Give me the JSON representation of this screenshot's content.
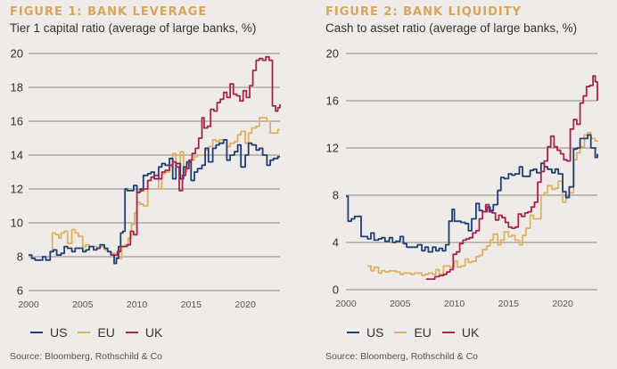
{
  "chart_data": [
    {
      "type": "line",
      "title": "FIGURE 1: BANK LEVERAGE",
      "subtitle": "Tier 1 capital ratio (average of large banks, %)",
      "xlabel": "",
      "ylabel": "",
      "xlim": [
        2000,
        2023.2
      ],
      "ylim": [
        6,
        20
      ],
      "yticks": [
        6,
        8,
        10,
        12,
        14,
        16,
        18,
        20
      ],
      "xticks": [
        2000,
        2005,
        2010,
        2015,
        2020
      ],
      "grid": true,
      "legend": "bottom-left",
      "source": "Source: Bloomberg, Rothschild & Co",
      "series": [
        {
          "name": "US",
          "color": "#1f3f73",
          "x": [
            2000,
            2000.3,
            2000.6,
            2001,
            2001.3,
            2001.6,
            2001.8,
            2002,
            2002.3,
            2002.6,
            2003,
            2003.3,
            2003.6,
            2004,
            2004.3,
            2004.6,
            2005,
            2005.3,
            2005.6,
            2006,
            2006.3,
            2006.6,
            2007,
            2007.3,
            2007.6,
            2007.9,
            2008.1,
            2008.3,
            2008.5,
            2008.7,
            2008.9,
            2009.1,
            2009.4,
            2009.7,
            2010,
            2010.3,
            2010.6,
            2011,
            2011.3,
            2011.6,
            2012,
            2012.3,
            2012.6,
            2013,
            2013.3,
            2013.6,
            2014,
            2014.3,
            2014.6,
            2015,
            2015.3,
            2015.6,
            2016,
            2016.3,
            2016.6,
            2017,
            2017.3,
            2017.6,
            2018,
            2018.3,
            2018.6,
            2019,
            2019.3,
            2019.6,
            2020,
            2020.3,
            2020.6,
            2021,
            2021.3,
            2021.6,
            2022,
            2022.3,
            2022.6,
            2023,
            2023.2
          ],
          "values": [
            8.1,
            7.9,
            7.8,
            7.8,
            8.0,
            7.8,
            7.8,
            8.3,
            8.4,
            8.1,
            8.2,
            8.6,
            8.5,
            8.3,
            8.5,
            8.5,
            8.3,
            8.4,
            8.6,
            8.4,
            8.5,
            8.7,
            8.5,
            8.3,
            8.1,
            7.6,
            7.9,
            8.6,
            9.4,
            9.5,
            12.0,
            11.9,
            11.9,
            12.2,
            11.8,
            12.0,
            12.8,
            12.9,
            13.0,
            12.6,
            13.3,
            13.5,
            13.4,
            13.8,
            12.6,
            13.5,
            12.6,
            13.3,
            13.6,
            12.5,
            13.0,
            13.2,
            13.4,
            14.4,
            13.6,
            14.4,
            14.6,
            14.7,
            14.9,
            13.7,
            14.0,
            14.2,
            14.6,
            13.3,
            14.0,
            14.7,
            14.6,
            14.3,
            14.4,
            14.0,
            13.4,
            13.7,
            13.8,
            13.9,
            13.9
          ]
        },
        {
          "name": "EU",
          "color": "#e0b060",
          "x": [
            2002,
            2002.2,
            2002.5,
            2002.8,
            2003,
            2003.3,
            2003.6,
            2004,
            2004.3,
            2004.6,
            2005,
            2005.3,
            2005.6,
            2006,
            2006.3,
            2006.6,
            2007,
            2007.3,
            2007.6,
            2008,
            2008.3,
            2008.6,
            2008.9,
            2009.2,
            2009.5,
            2009.8,
            2010,
            2010.3,
            2010.6,
            2011,
            2011.3,
            2011.6,
            2012,
            2012.3,
            2012.6,
            2013,
            2013.3,
            2013.6,
            2014,
            2014.3,
            2014.6,
            2015,
            2015.3,
            2015.6,
            2016,
            2016.3,
            2016.6,
            2017,
            2017.3,
            2017.6,
            2018,
            2018.3,
            2018.6,
            2019,
            2019.3,
            2019.6,
            2020,
            2020.3,
            2020.6,
            2021,
            2021.3,
            2021.6,
            2022,
            2022.3,
            2022.6,
            2023,
            2023.2
          ],
          "values": [
            8.3,
            9.4,
            9.3,
            9.1,
            9.4,
            9.5,
            8.8,
            9.6,
            9.4,
            9.2,
            8.6,
            8.7,
            8.6,
            8.6,
            8.5,
            8.6,
            8.4,
            8.3,
            8.2,
            8.1,
            7.9,
            8.6,
            8.7,
            9.1,
            9.9,
            10.6,
            11.2,
            11.1,
            11.0,
            12.5,
            12.7,
            12.8,
            12.0,
            12.9,
            13.0,
            13.3,
            14.1,
            13.5,
            14.2,
            13.0,
            13.5,
            13.7,
            13.9,
            14.0,
            14.0,
            14.3,
            14.5,
            14.9,
            14.8,
            14.9,
            14.9,
            14.5,
            14.7,
            14.8,
            15.2,
            15.4,
            14.7,
            15.3,
            15.6,
            15.7,
            16.2,
            16.2,
            16.0,
            15.3,
            15.3,
            15.5,
            15.5
          ]
        },
        {
          "name": "UK",
          "color": "#a8234f",
          "x": [
            2007.6,
            2007.9,
            2008.2,
            2008.5,
            2008.8,
            2009.1,
            2009.4,
            2009.7,
            2010,
            2010.3,
            2010.6,
            2011,
            2011.3,
            2011.6,
            2012,
            2012.3,
            2012.6,
            2013,
            2013.3,
            2013.6,
            2013.9,
            2014.2,
            2014.5,
            2014.8,
            2015.1,
            2015.4,
            2015.7,
            2016,
            2016.2,
            2016.5,
            2016.8,
            2017.1,
            2017.4,
            2017.7,
            2018,
            2018.3,
            2018.6,
            2018.9,
            2019.2,
            2019.5,
            2019.8,
            2020.1,
            2020.4,
            2020.7,
            2021,
            2021.3,
            2021.6,
            2021.9,
            2022.2,
            2022.5,
            2022.8,
            2023,
            2023.2
          ],
          "values": [
            8.1,
            8.1,
            8.3,
            8.6,
            8.6,
            8.7,
            9.5,
            9.3,
            11.8,
            11.9,
            12.0,
            12.5,
            12.7,
            12.8,
            12.6,
            13.0,
            13.1,
            13.4,
            13.6,
            13.3,
            11.9,
            12.8,
            13.2,
            13.7,
            14.1,
            14.4,
            15.0,
            16.2,
            15.6,
            15.7,
            16.7,
            16.6,
            17.1,
            17.3,
            17.7,
            17.4,
            18.2,
            17.6,
            17.5,
            17.2,
            17.8,
            17.4,
            18.1,
            19.0,
            19.6,
            19.7,
            19.6,
            19.8,
            19.6,
            16.9,
            16.6,
            16.8,
            17.0
          ]
        }
      ]
    },
    {
      "type": "line",
      "title": "FIGURE 2: BANK LIQUIDITY",
      "subtitle": "Cash to asset ratio (average of large banks, %)",
      "xlabel": "",
      "ylabel": "",
      "xlim": [
        2000,
        2023.2
      ],
      "ylim": [
        0,
        20
      ],
      "yticks": [
        0,
        4,
        8,
        12,
        16,
        20
      ],
      "xticks": [
        2000,
        2005,
        2010,
        2015,
        2020
      ],
      "grid": true,
      "legend": "bottom-left",
      "source": "Source: Bloomberg, Rothschild & Co",
      "series": [
        {
          "name": "US",
          "color": "#1f3f73",
          "x": [
            2000,
            2000.2,
            2000.5,
            2000.8,
            2001.1,
            2001.4,
            2001.7,
            2002,
            2002.3,
            2002.6,
            2003,
            2003.3,
            2003.6,
            2004,
            2004.3,
            2004.6,
            2005,
            2005.3,
            2005.6,
            2006,
            2006.3,
            2006.6,
            2007,
            2007.3,
            2007.6,
            2008,
            2008.3,
            2008.6,
            2008.9,
            2009.2,
            2009.5,
            2009.8,
            2010,
            2010.3,
            2010.6,
            2011,
            2011.3,
            2011.6,
            2012,
            2012.3,
            2012.6,
            2013,
            2013.3,
            2013.6,
            2014,
            2014.3,
            2014.6,
            2015,
            2015.3,
            2015.6,
            2016,
            2016.3,
            2016.6,
            2017,
            2017.3,
            2017.6,
            2018,
            2018.3,
            2018.6,
            2019,
            2019.3,
            2019.6,
            2020,
            2020.3,
            2020.6,
            2021,
            2021.3,
            2021.6,
            2022,
            2022.3,
            2022.6,
            2023,
            2023.2
          ],
          "values": [
            7.9,
            5.8,
            6.0,
            6.2,
            6.2,
            4.5,
            4.5,
            4.3,
            4.8,
            4.2,
            4.3,
            4.4,
            4.1,
            4.4,
            4.0,
            4.1,
            4.5,
            3.9,
            3.6,
            3.6,
            3.6,
            3.8,
            3.3,
            3.6,
            3.2,
            3.6,
            3.3,
            3.5,
            3.3,
            3.8,
            5.8,
            6.8,
            5.8,
            5.8,
            5.7,
            5.6,
            5.0,
            6.0,
            7.3,
            6.7,
            6.6,
            7.0,
            6.7,
            7.2,
            8.4,
            9.5,
            9.4,
            9.8,
            9.7,
            9.8,
            10.4,
            9.6,
            9.6,
            10.1,
            10.2,
            9.9,
            10.7,
            10.4,
            10.2,
            9.9,
            10.2,
            9.8,
            8.3,
            7.8,
            8.7,
            11.9,
            12.0,
            12.8,
            12.8,
            13.1,
            12.0,
            11.2,
            11.5
          ]
        },
        {
          "name": "EU",
          "color": "#e0b060",
          "x": [
            2002,
            2002.3,
            2002.6,
            2003,
            2003.3,
            2003.6,
            2004,
            2004.3,
            2004.6,
            2005,
            2005.3,
            2005.6,
            2006,
            2006.3,
            2006.6,
            2007,
            2007.3,
            2007.6,
            2008,
            2008.3,
            2008.6,
            2009,
            2009.3,
            2009.6,
            2010,
            2010.3,
            2010.6,
            2011,
            2011.3,
            2011.6,
            2012,
            2012.3,
            2012.6,
            2013,
            2013.3,
            2013.6,
            2014,
            2014.3,
            2014.6,
            2015,
            2015.3,
            2015.6,
            2016,
            2016.3,
            2016.6,
            2017,
            2017.3,
            2017.6,
            2018,
            2018.3,
            2018.6,
            2019,
            2019.3,
            2019.6,
            2020,
            2020.3,
            2020.6,
            2021,
            2021.3,
            2021.6,
            2022,
            2022.3,
            2022.6,
            2023,
            2023.2
          ],
          "values": [
            2.0,
            1.6,
            1.9,
            1.4,
            1.6,
            1.5,
            1.6,
            1.6,
            1.5,
            1.3,
            1.4,
            1.4,
            1.3,
            1.4,
            1.4,
            1.2,
            1.3,
            1.4,
            1.3,
            1.7,
            1.3,
            2.0,
            2.0,
            1.9,
            2.4,
            1.9,
            2.0,
            2.6,
            2.3,
            2.4,
            2.8,
            2.9,
            3.4,
            3.7,
            4.2,
            4.7,
            3.8,
            4.2,
            4.9,
            4.5,
            4.6,
            4.2,
            3.8,
            4.6,
            5.2,
            6.3,
            6.0,
            6.0,
            8.0,
            8.2,
            8.8,
            8.5,
            8.6,
            9.2,
            7.4,
            7.9,
            8.2,
            11.0,
            11.6,
            12.1,
            13.1,
            13.3,
            12.8,
            12.6,
            12.5
          ]
        },
        {
          "name": "UK",
          "color": "#a8234f",
          "x": [
            2007.4,
            2007.8,
            2008.2,
            2008.6,
            2009,
            2009.3,
            2009.6,
            2009.9,
            2010.2,
            2010.5,
            2010.8,
            2011.1,
            2011.4,
            2011.7,
            2012,
            2012.3,
            2012.6,
            2012.9,
            2013.2,
            2013.5,
            2013.8,
            2014.1,
            2014.4,
            2014.7,
            2015,
            2015.3,
            2015.6,
            2015.9,
            2016.2,
            2016.5,
            2016.8,
            2017.1,
            2017.4,
            2017.7,
            2018,
            2018.3,
            2018.6,
            2018.9,
            2019.2,
            2019.5,
            2019.8,
            2020.1,
            2020.4,
            2020.7,
            2021,
            2021.3,
            2021.6,
            2021.9,
            2022.2,
            2022.5,
            2022.8,
            2023,
            2023.2
          ],
          "values": [
            0.9,
            0.9,
            1.1,
            1.2,
            1.3,
            1.5,
            1.7,
            3.0,
            3.2,
            3.9,
            4.2,
            4.3,
            4.4,
            4.8,
            5.0,
            6.0,
            6.6,
            7.2,
            6.6,
            6.5,
            5.9,
            6.3,
            6.1,
            5.7,
            5.3,
            5.2,
            5.3,
            6.4,
            6.2,
            6.5,
            6.6,
            7.0,
            7.4,
            9.1,
            10.0,
            10.9,
            12.1,
            13.0,
            12.1,
            11.8,
            11.5,
            11.0,
            10.9,
            13.6,
            14.4,
            14.0,
            15.8,
            16.4,
            17.2,
            17.3,
            18.1,
            17.6,
            16.0
          ]
        }
      ]
    }
  ]
}
